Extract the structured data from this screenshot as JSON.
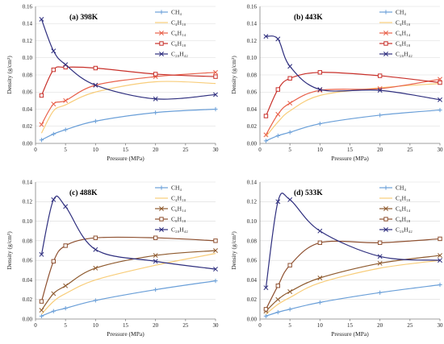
{
  "chart_data": [
    {
      "type": "line",
      "title": "(a) 398K",
      "xlabel": "Pressure (MPa)",
      "ylabel": "Density (g/cm³)",
      "xlim": [
        0,
        30
      ],
      "ylim": [
        0,
        0.16
      ],
      "xticks": [
        "0",
        "5",
        "10",
        "15",
        "20",
        "25",
        "30"
      ],
      "yticks": [
        "0.00",
        "0.02",
        "0.04",
        "0.06",
        "0.08",
        "0.10",
        "0.12",
        "0.14",
        "0.16"
      ],
      "grid": "horizontal",
      "legend": "top-right",
      "series": [
        {
          "name": "CH₄",
          "color": "#6a9fd8",
          "marker": "plus",
          "x": [
            1,
            3,
            5,
            10,
            20,
            30
          ],
          "y": [
            0.004,
            0.011,
            0.016,
            0.026,
            0.036,
            0.04
          ]
        },
        {
          "name": "C₄H₁₀",
          "color": "#f8cd7a",
          "marker": "none",
          "x": [
            1,
            3,
            5,
            10,
            20,
            30
          ],
          "y": [
            0.012,
            0.038,
            0.045,
            0.06,
            0.072,
            0.07
          ]
        },
        {
          "name": "C₆H₁₄",
          "color": "#e8604a",
          "marker": "x",
          "x": [
            1,
            3,
            5,
            10,
            20,
            30
          ],
          "y": [
            0.022,
            0.046,
            0.05,
            0.068,
            0.078,
            0.083
          ]
        },
        {
          "name": "C₈H₁₈",
          "color": "#c8302a",
          "marker": "square",
          "x": [
            1,
            3,
            5,
            10,
            20,
            30
          ],
          "y": [
            0.056,
            0.086,
            0.089,
            0.088,
            0.081,
            0.078
          ]
        },
        {
          "name": "C₂₀H₄₂",
          "color": "#2e2e7e",
          "marker": "x",
          "x": [
            1,
            3,
            5,
            10,
            20,
            30
          ],
          "y": [
            0.145,
            0.108,
            0.092,
            0.068,
            0.052,
            0.057
          ]
        }
      ]
    },
    {
      "type": "line",
      "title": "(b) 443K",
      "xlabel": "Pressure (MPa)",
      "ylabel": "Density (g/cm³)",
      "xlim": [
        0,
        30
      ],
      "ylim": [
        0,
        0.16
      ],
      "xticks": [
        "0",
        "5",
        "10",
        "15",
        "20",
        "25",
        "30"
      ],
      "yticks": [
        "0.00",
        "0.02",
        "0.04",
        "0.06",
        "0.08",
        "0.10",
        "0.12",
        "0.14",
        "0.16"
      ],
      "grid": "horizontal",
      "legend": "top-right",
      "series": [
        {
          "name": "CH₄",
          "color": "#6a9fd8",
          "marker": "plus",
          "x": [
            1,
            3,
            5,
            10,
            20,
            30
          ],
          "y": [
            0.003,
            0.009,
            0.013,
            0.023,
            0.033,
            0.039
          ]
        },
        {
          "name": "C₄H₁₀",
          "color": "#f8cd7a",
          "marker": "none",
          "x": [
            1,
            3,
            5,
            10,
            20,
            30
          ],
          "y": [
            0.008,
            0.025,
            0.038,
            0.056,
            0.065,
            0.07
          ]
        },
        {
          "name": "C₆H₁₄",
          "color": "#e8604a",
          "marker": "x",
          "x": [
            1,
            3,
            5,
            10,
            20,
            30
          ],
          "y": [
            0.01,
            0.034,
            0.047,
            0.062,
            0.064,
            0.075
          ]
        },
        {
          "name": "C₈H₁₈",
          "color": "#c8302a",
          "marker": "square",
          "x": [
            1,
            3,
            5,
            10,
            20,
            30
          ],
          "y": [
            0.032,
            0.063,
            0.076,
            0.083,
            0.079,
            0.071
          ]
        },
        {
          "name": "C₂₀H₄₂",
          "color": "#2e2e7e",
          "marker": "x",
          "x": [
            1,
            3,
            5,
            10,
            20,
            30
          ],
          "y": [
            0.125,
            0.122,
            0.09,
            0.063,
            0.062,
            0.051
          ]
        }
      ]
    },
    {
      "type": "line",
      "title": "(c) 488K",
      "xlabel": "Pressure (MPa)",
      "ylabel": "Density (g/cm³)",
      "xlim": [
        0,
        30
      ],
      "ylim": [
        0,
        0.14
      ],
      "xticks": [
        "0",
        "5",
        "10",
        "15",
        "20",
        "25",
        "30"
      ],
      "yticks": [
        "0.00",
        "0.02",
        "0.04",
        "0.06",
        "0.08",
        "0.10",
        "0.12",
        "0.14"
      ],
      "grid": "horizontal",
      "legend": "top-right",
      "series": [
        {
          "name": "CH₄",
          "color": "#6a9fd8",
          "marker": "plus",
          "x": [
            1,
            3,
            5,
            10,
            20,
            30
          ],
          "y": [
            0.003,
            0.008,
            0.011,
            0.019,
            0.03,
            0.039
          ]
        },
        {
          "name": "C₄H₁₀",
          "color": "#f8cd7a",
          "marker": "none",
          "x": [
            1,
            3,
            5,
            10,
            20,
            30
          ],
          "y": [
            0.005,
            0.018,
            0.026,
            0.04,
            0.055,
            0.067
          ]
        },
        {
          "name": "C₆H₁₄",
          "color": "#8e5a2e",
          "marker": "x",
          "x": [
            1,
            3,
            5,
            10,
            20,
            30
          ],
          "y": [
            0.009,
            0.026,
            0.034,
            0.052,
            0.065,
            0.07
          ]
        },
        {
          "name": "C₈H₁₈",
          "color": "#8e5030",
          "marker": "square",
          "x": [
            1,
            3,
            5,
            10,
            20,
            30
          ],
          "y": [
            0.018,
            0.059,
            0.075,
            0.083,
            0.083,
            0.08
          ]
        },
        {
          "name": "C₂₀H₄₂",
          "color": "#2e2e7e",
          "marker": "x",
          "x": [
            1,
            3,
            5,
            10,
            20,
            30
          ],
          "y": [
            0.066,
            0.122,
            0.115,
            0.071,
            0.059,
            0.051
          ]
        }
      ]
    },
    {
      "type": "line",
      "title": "(d) 533K",
      "xlabel": "Pressure (MPa)",
      "ylabel": "Density (g/cm³)",
      "xlim": [
        0,
        30
      ],
      "ylim": [
        0,
        0.14
      ],
      "xticks": [
        "0",
        "5",
        "10",
        "15",
        "20",
        "25",
        "30"
      ],
      "yticks": [
        "0.00",
        "0.02",
        "0.04",
        "0.06",
        "0.08",
        "0.10",
        "0.12",
        "0.14"
      ],
      "grid": "horizontal",
      "legend": "top-right",
      "series": [
        {
          "name": "CH₄",
          "color": "#6a9fd8",
          "marker": "plus",
          "x": [
            1,
            3,
            5,
            10,
            20,
            30
          ],
          "y": [
            0.003,
            0.007,
            0.01,
            0.017,
            0.027,
            0.035
          ]
        },
        {
          "name": "C₄H₁₀",
          "color": "#f8cd7a",
          "marker": "none",
          "x": [
            1,
            3,
            5,
            10,
            20,
            30
          ],
          "y": [
            0.005,
            0.015,
            0.022,
            0.037,
            0.052,
            0.06
          ]
        },
        {
          "name": "C₆H₁₄",
          "color": "#8e5a2e",
          "marker": "x",
          "x": [
            1,
            3,
            5,
            10,
            20,
            30
          ],
          "y": [
            0.008,
            0.02,
            0.028,
            0.042,
            0.057,
            0.065
          ]
        },
        {
          "name": "C₈H₁₈",
          "color": "#8e5030",
          "marker": "square",
          "x": [
            1,
            3,
            5,
            10,
            20,
            30
          ],
          "y": [
            0.01,
            0.034,
            0.055,
            0.078,
            0.078,
            0.082
          ]
        },
        {
          "name": "C₂₀H₄₂",
          "color": "#2e2e7e",
          "marker": "x",
          "x": [
            1,
            3,
            5,
            10,
            20,
            30
          ],
          "y": [
            0.032,
            0.12,
            0.122,
            0.09,
            0.064,
            0.06
          ]
        }
      ]
    }
  ]
}
